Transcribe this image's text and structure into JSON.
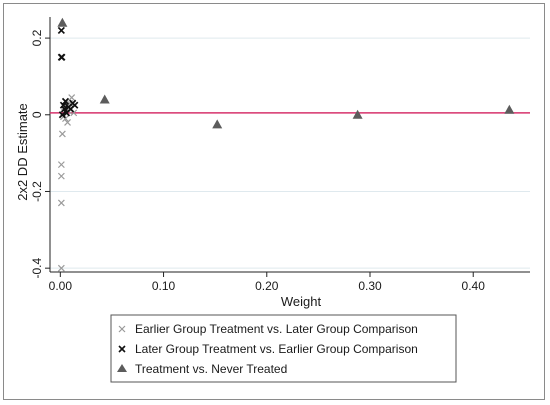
{
  "chart_data": {
    "type": "scatter",
    "title": "",
    "xlabel": "Weight",
    "ylabel": "2x2 DD Estimate",
    "xlim": [
      -0.01,
      0.455
    ],
    "ylim": [
      -0.41,
      0.255
    ],
    "x_ticks": [
      {
        "value": 0,
        "label": "0.00"
      },
      {
        "value": 0.1,
        "label": "0.10"
      },
      {
        "value": 0.2,
        "label": "0.20"
      },
      {
        "value": 0.3,
        "label": "0.30"
      },
      {
        "value": 0.4,
        "label": "0.40"
      }
    ],
    "y_ticks": [
      {
        "value": 0.2,
        "label": "0.2"
      },
      {
        "value": 0,
        "label": "0"
      },
      {
        "value": -0.2,
        "label": "-0.2"
      },
      {
        "value": -0.4,
        "label": "-0.4"
      }
    ],
    "grid": "horizontal",
    "legend_position": "bottom",
    "reference_line": {
      "y": 0.005,
      "color": "#d6336c"
    },
    "series": [
      {
        "name": "Earlier Group Treatment vs. Later Group Comparison",
        "marker": "x",
        "color": "#9a9a9a",
        "points": [
          [
            0.001,
            -0.4
          ],
          [
            0.001,
            -0.23
          ],
          [
            0.001,
            -0.16
          ],
          [
            0.001,
            -0.13
          ],
          [
            0.002,
            -0.05
          ],
          [
            0.003,
            -0.005
          ],
          [
            0.004,
            0.02
          ],
          [
            0.005,
            -0.01
          ],
          [
            0.007,
            -0.02
          ],
          [
            0.008,
            0.01
          ],
          [
            0.009,
            0.03
          ],
          [
            0.011,
            0.045
          ],
          [
            0.013,
            0.005
          ],
          [
            0.014,
            0.025
          ]
        ]
      },
      {
        "name": "Later Group Treatment vs. Earlier Group Comparison",
        "marker": "x",
        "color": "#111111",
        "points": [
          [
            0.001,
            0.22
          ],
          [
            0.001,
            0.15
          ],
          [
            0.0015,
            0.15
          ],
          [
            0.002,
            0.0
          ],
          [
            0.003,
            0.025
          ],
          [
            0.004,
            0.015
          ],
          [
            0.005,
            0.035
          ],
          [
            0.006,
            0.005
          ],
          [
            0.008,
            0.02
          ],
          [
            0.01,
            0.015
          ],
          [
            0.012,
            0.03
          ],
          [
            0.014,
            0.025
          ]
        ]
      },
      {
        "name": "Treatment vs. Never Treated",
        "marker": "triangle",
        "color": "#5c5c5c",
        "points": [
          [
            0.002,
            0.24
          ],
          [
            0.043,
            0.04
          ],
          [
            0.152,
            -0.025
          ],
          [
            0.288,
            0.0
          ],
          [
            0.435,
            0.013
          ]
        ]
      }
    ]
  }
}
